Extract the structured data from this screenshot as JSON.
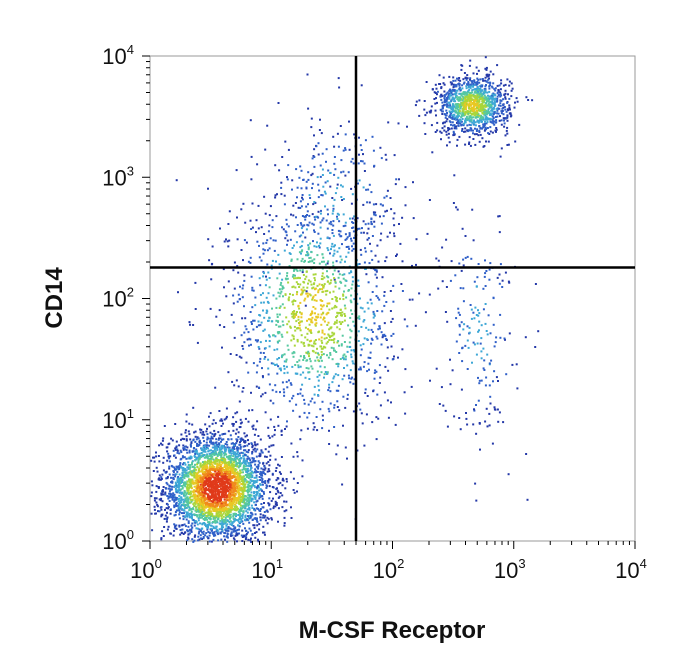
{
  "chart_data": {
    "type": "scatter",
    "subtype": "flow-cytometry density dot plot",
    "xlabel": "M-CSF Receptor",
    "ylabel": "CD14",
    "xscale": "log",
    "yscale": "log",
    "xlim": [
      1,
      10000
    ],
    "ylim": [
      1,
      10000
    ],
    "x_ticks": [
      1,
      10,
      100,
      1000,
      10000
    ],
    "y_ticks": [
      1,
      10,
      100,
      1000,
      10000
    ],
    "tick_labels": {
      "x": [
        {
          "base": "10",
          "exp": "0"
        },
        {
          "base": "10",
          "exp": "1"
        },
        {
          "base": "10",
          "exp": "2"
        },
        {
          "base": "10",
          "exp": "3"
        },
        {
          "base": "10",
          "exp": "4"
        }
      ],
      "y": [
        {
          "base": "10",
          "exp": "0"
        },
        {
          "base": "10",
          "exp": "1"
        },
        {
          "base": "10",
          "exp": "2"
        },
        {
          "base": "10",
          "exp": "3"
        },
        {
          "base": "10",
          "exp": "4"
        }
      ]
    },
    "quadrant_gates": {
      "x": 50,
      "y": 180
    },
    "populations": [
      {
        "center": [
          3.5,
          2.8
        ],
        "spread_decades": [
          0.22,
          0.22
        ],
        "weight": 0.55
      },
      {
        "center": [
          450,
          4000
        ],
        "spread_decades": [
          0.15,
          0.12
        ],
        "weight": 0.18
      },
      {
        "center": [
          22,
          80
        ],
        "spread_decades": [
          0.35,
          0.5
        ],
        "weight": 0.2
      },
      {
        "center": [
          35,
          700
        ],
        "spread_decades": [
          0.3,
          0.35
        ],
        "weight": 0.04
      },
      {
        "center": [
          500,
          60
        ],
        "spread_decades": [
          0.15,
          0.5
        ],
        "weight": 0.03
      }
    ],
    "density_colors": [
      "#2438a8",
      "#2f5fc8",
      "#3da7d6",
      "#55c8a0",
      "#a8d63a",
      "#e8c823",
      "#f08a1c",
      "#e03a1a"
    ],
    "grid": false,
    "legend": "none"
  }
}
